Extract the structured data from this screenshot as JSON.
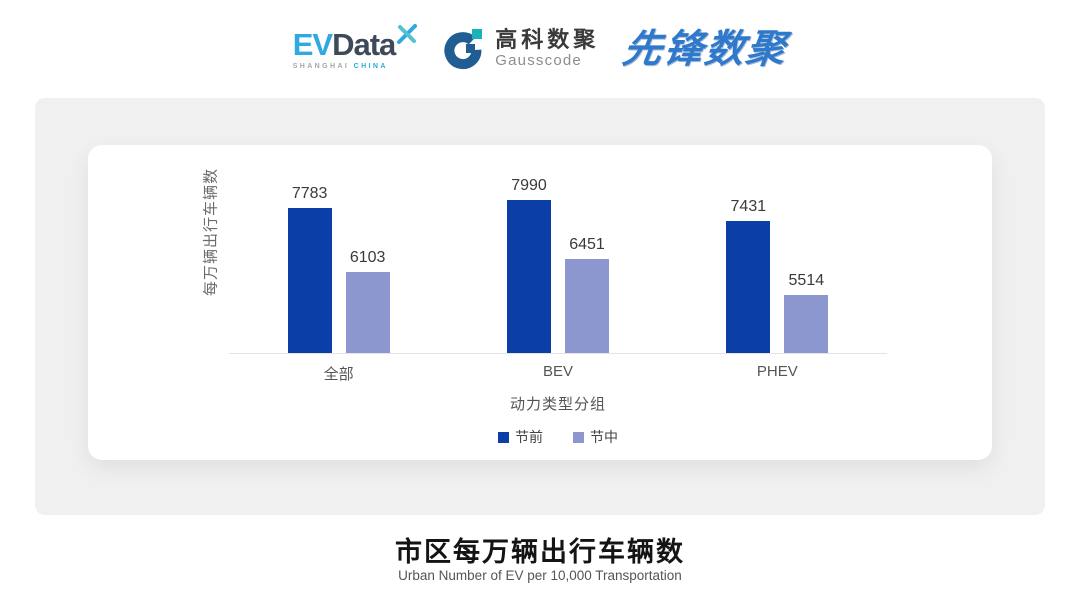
{
  "header": {
    "evdata_logo": {
      "ev": "EV",
      "data": "Data",
      "sub_left": "SHANGHAI",
      "sub_right": "CHINA",
      "ev_color": "#2FA9E1",
      "data_color": "#3E4A59",
      "sub_left_color": "#A0A7AE",
      "sub_right_color": "#2FA9E1"
    },
    "gausscode_logo": {
      "cn": "高科数聚",
      "en": "Gausscode",
      "mark_blue": "#1F5D93",
      "mark_teal": "#17B3B8"
    },
    "pioneer_logo": {
      "text": "先锋数聚",
      "color": "#2E79CC"
    }
  },
  "chart_data": {
    "type": "bar",
    "title": "市区每万辆出行车辆数",
    "subtitle": "Urban Number of EV per 10,000 Transportation",
    "categories": [
      "全部",
      "BEV",
      "PHEV"
    ],
    "series": [
      {
        "name": "节前",
        "color": "#0B3EA6",
        "values": [
          7783,
          7990,
          7431
        ]
      },
      {
        "name": "节中",
        "color": "#8B97CE",
        "values": [
          6103,
          6451,
          5514
        ]
      }
    ],
    "xlabel": "动力类型分组",
    "ylabel": "每万辆出行车辆数",
    "ylim": [
      4000,
      8400
    ],
    "grid": false,
    "legend_position": "bottom",
    "value_labels": true,
    "axis_line_color": "#E4E4E6"
  }
}
